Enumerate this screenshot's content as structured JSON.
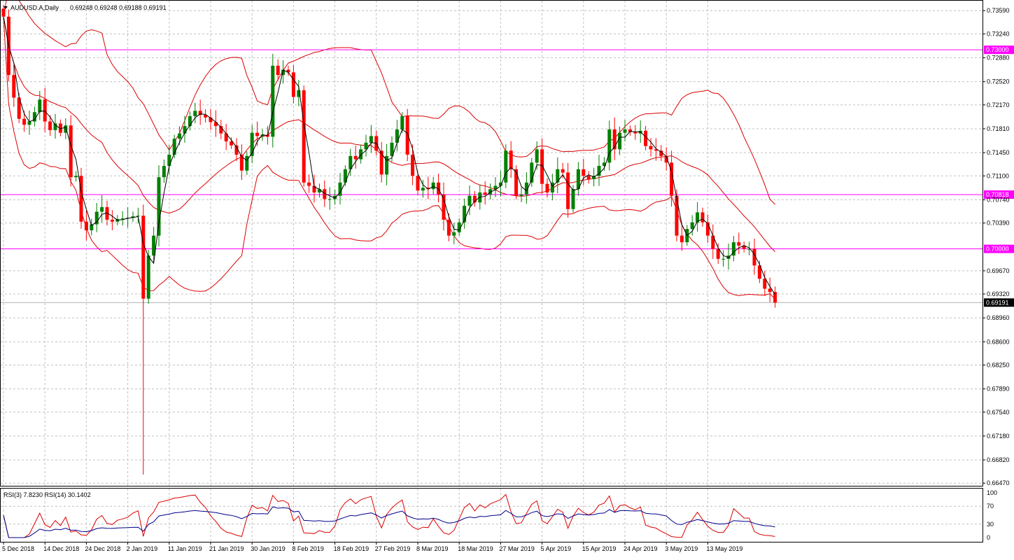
{
  "header": {
    "symbol_label": "AUDUSD.A,Daily",
    "ohlc_label": "0.69248 0.69248 0.69188 0.69191"
  },
  "rsi": {
    "legend": "RSI(3) 7.8230  RSI(14) 30.1402",
    "levels": [
      "100",
      "70",
      "30",
      "0"
    ],
    "colors": {
      "rsi3": "#dd0000",
      "rsi14": "#00008b"
    }
  },
  "colors": {
    "bull": "#008000",
    "bear": "#ff0000",
    "bands": "#dd0000",
    "ma": "#000000",
    "hline": "#ff00ff",
    "grid": "#c0c0c0"
  },
  "chart_data": {
    "type": "candlestick",
    "price_ticks": [
      "0.73590",
      "0.73240",
      "0.72880",
      "0.72520",
      "0.72170",
      "0.71810",
      "0.71450",
      "0.71100",
      "0.70740",
      "0.70390",
      "0.69670",
      "0.69320",
      "0.68960",
      "0.68600",
      "0.68250",
      "0.67890",
      "0.67540",
      "0.67180",
      "0.66820",
      "0.66470"
    ],
    "date_ticks": [
      "5 Dec 2018",
      "14 Dec 2018",
      "24 Dec 2018",
      "2 Jan 2019",
      "11 Jan 2019",
      "21 Jan 2019",
      "30 Jan 2019",
      "8 Feb 2019",
      "18 Feb 2019",
      "27 Feb 2019",
      "8 Mar 2019",
      "18 Mar 2019",
      "27 Mar 2019",
      "5 Apr 2019",
      "15 Apr 2019",
      "24 Apr 2019",
      "3 May 2019",
      "13 May 2019"
    ],
    "horizontal_lines": [
      {
        "value": 0.73,
        "label": "0.73000"
      },
      {
        "value": 0.70818,
        "label": "0.70818"
      },
      {
        "value": 0.7,
        "label": "0.70000"
      }
    ],
    "current_price": {
      "value": 0.69191,
      "label": "0.69191"
    },
    "ylim": [
      0.6643,
      0.7374
    ],
    "closes": [
      0.735,
      0.7262,
      0.7228,
      0.7196,
      0.7187,
      0.7192,
      0.7206,
      0.7225,
      0.7192,
      0.7179,
      0.7189,
      0.7175,
      0.7186,
      0.7108,
      0.711,
      0.7041,
      0.7028,
      0.7037,
      0.7056,
      0.7063,
      0.7044,
      0.7041,
      0.7045,
      0.7046,
      0.7047,
      0.7049,
      0.705,
      0.6925,
      0.699,
      0.702,
      0.7108,
      0.7125,
      0.7142,
      0.7166,
      0.7174,
      0.7185,
      0.72,
      0.7208,
      0.7202,
      0.7198,
      0.7191,
      0.7185,
      0.7174,
      0.7162,
      0.7156,
      0.7142,
      0.7118,
      0.714,
      0.7175,
      0.717,
      0.7172,
      0.7169,
      0.7276,
      0.7262,
      0.727,
      0.7266,
      0.7229,
      0.7239,
      0.71,
      0.7095,
      0.7085,
      0.709,
      0.7075,
      0.7075,
      0.708,
      0.71,
      0.712,
      0.714,
      0.7135,
      0.715,
      0.716,
      0.717,
      0.7148,
      0.7112,
      0.714,
      0.716,
      0.718,
      0.72,
      0.7142,
      0.711,
      0.7088,
      0.7092,
      0.709,
      0.71,
      0.7082,
      0.7044,
      0.702,
      0.7025,
      0.704,
      0.7065,
      0.708,
      0.707,
      0.7085,
      0.7082,
      0.709,
      0.7095,
      0.71,
      0.7148,
      0.712,
      0.708,
      0.7082,
      0.71,
      0.713,
      0.715,
      0.7098,
      0.7085,
      0.71,
      0.712,
      0.7115,
      0.706,
      0.709,
      0.712,
      0.711,
      0.7105,
      0.711,
      0.7125,
      0.713,
      0.718,
      0.715,
      0.7175,
      0.718,
      0.7176,
      0.7174,
      0.7178,
      0.7155,
      0.715,
      0.7148,
      0.714,
      0.713,
      0.708,
      0.702,
      0.701,
      0.703,
      0.704,
      0.7055,
      0.704,
      0.702,
      0.7,
      0.6985,
      0.6985,
      0.699,
      0.701,
      0.7005,
      0.7,
      0.7,
      0.6975,
      0.6955,
      0.694,
      0.6935,
      0.6919
    ]
  }
}
